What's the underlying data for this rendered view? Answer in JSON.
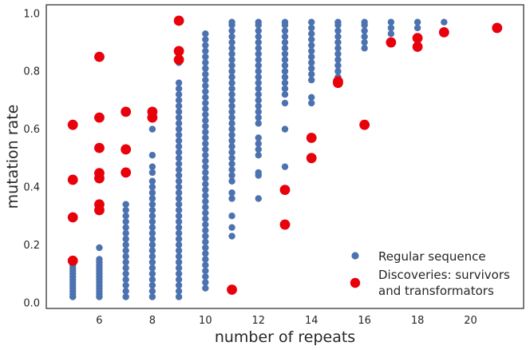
{
  "chart_data": {
    "type": "scatter",
    "title": "",
    "xlabel": "number of repeats",
    "ylabel": "mutation rate",
    "xlim": [
      4.0,
      22.0
    ],
    "ylim": [
      -0.02,
      1.03
    ],
    "xticks": [
      6,
      8,
      10,
      12,
      14,
      16,
      18,
      20
    ],
    "yticks": [
      0.0,
      0.2,
      0.4,
      0.6,
      0.8,
      1.0
    ],
    "grid": false,
    "legend_position": "bottom-right",
    "series": [
      {
        "name": "Regular sequence",
        "color": "#4c72b0",
        "marker": "small-circle",
        "columns": [
          {
            "x": 5,
            "ymin": 0.02,
            "ymax": 0.15,
            "points": [
              0.02,
              0.03,
              0.04,
              0.05,
              0.06,
              0.07,
              0.08,
              0.09,
              0.1,
              0.11,
              0.12,
              0.13,
              0.14,
              0.15
            ]
          },
          {
            "x": 6,
            "ymin": 0.02,
            "ymax": 0.19,
            "points": [
              0.02,
              0.03,
              0.04,
              0.05,
              0.06,
              0.07,
              0.08,
              0.09,
              0.1,
              0.11,
              0.12,
              0.13,
              0.14,
              0.15,
              0.19
            ]
          },
          {
            "x": 7,
            "ymin": 0.02,
            "ymax": 0.34,
            "points": [
              0.02,
              0.04,
              0.06,
              0.08,
              0.1,
              0.12,
              0.14,
              0.16,
              0.18,
              0.2,
              0.22,
              0.24,
              0.26,
              0.28,
              0.3,
              0.32,
              0.34
            ]
          },
          {
            "x": 8,
            "ymin": 0.02,
            "ymax": 0.6,
            "points": [
              0.02,
              0.04,
              0.06,
              0.08,
              0.1,
              0.12,
              0.14,
              0.16,
              0.18,
              0.2,
              0.22,
              0.24,
              0.26,
              0.28,
              0.3,
              0.32,
              0.34,
              0.36,
              0.38,
              0.4,
              0.42,
              0.45,
              0.47,
              0.51,
              0.6
            ]
          },
          {
            "x": 9,
            "ymin": 0.02,
            "ymax": 0.87,
            "points": [
              0.02,
              0.04,
              0.06,
              0.08,
              0.1,
              0.12,
              0.14,
              0.16,
              0.18,
              0.2,
              0.22,
              0.24,
              0.26,
              0.28,
              0.3,
              0.32,
              0.34,
              0.36,
              0.38,
              0.4,
              0.42,
              0.44,
              0.46,
              0.48,
              0.5,
              0.52,
              0.54,
              0.56,
              0.58,
              0.6,
              0.62,
              0.64,
              0.66,
              0.68,
              0.7,
              0.72,
              0.74,
              0.76,
              0.83,
              0.86,
              0.87
            ]
          },
          {
            "x": 10,
            "ymin": 0.05,
            "ymax": 0.93,
            "points": [
              0.05,
              0.07,
              0.09,
              0.11,
              0.13,
              0.15,
              0.17,
              0.19,
              0.21,
              0.23,
              0.25,
              0.27,
              0.29,
              0.31,
              0.33,
              0.35,
              0.37,
              0.39,
              0.41,
              0.43,
              0.45,
              0.47,
              0.49,
              0.51,
              0.53,
              0.55,
              0.57,
              0.59,
              0.61,
              0.63,
              0.65,
              0.67,
              0.69,
              0.71,
              0.73,
              0.75,
              0.77,
              0.79,
              0.81,
              0.83,
              0.85,
              0.87,
              0.89,
              0.91,
              0.93
            ]
          },
          {
            "x": 11,
            "ymin": 0.23,
            "ymax": 0.97,
            "points": [
              0.23,
              0.26,
              0.3,
              0.36,
              0.38,
              0.42,
              0.44,
              0.46,
              0.48,
              0.5,
              0.52,
              0.54,
              0.56,
              0.58,
              0.6,
              0.62,
              0.64,
              0.66,
              0.68,
              0.7,
              0.72,
              0.74,
              0.76,
              0.78,
              0.8,
              0.82,
              0.84,
              0.86,
              0.88,
              0.9,
              0.92,
              0.94,
              0.96,
              0.97
            ]
          },
          {
            "x": 12,
            "ymin": 0.36,
            "ymax": 0.97,
            "points": [
              0.36,
              0.44,
              0.45,
              0.51,
              0.53,
              0.55,
              0.57,
              0.62,
              0.64,
              0.66,
              0.68,
              0.7,
              0.72,
              0.74,
              0.76,
              0.78,
              0.8,
              0.82,
              0.84,
              0.86,
              0.88,
              0.9,
              0.92,
              0.94,
              0.96,
              0.97
            ]
          },
          {
            "x": 13,
            "ymin": 0.47,
            "ymax": 0.97,
            "points": [
              0.47,
              0.6,
              0.69,
              0.72,
              0.74,
              0.76,
              0.78,
              0.8,
              0.82,
              0.84,
              0.86,
              0.88,
              0.9,
              0.92,
              0.94,
              0.96,
              0.97
            ]
          },
          {
            "x": 14,
            "ymin": 0.69,
            "ymax": 0.97,
            "points": [
              0.69,
              0.71,
              0.77,
              0.79,
              0.81,
              0.83,
              0.85,
              0.87,
              0.89,
              0.91,
              0.93,
              0.95,
              0.97
            ]
          },
          {
            "x": 15,
            "ymin": 0.78,
            "ymax": 0.97,
            "points": [
              0.78,
              0.8,
              0.82,
              0.84,
              0.86,
              0.88,
              0.9,
              0.92,
              0.94,
              0.96,
              0.97
            ]
          },
          {
            "x": 16,
            "ymin": 0.88,
            "ymax": 0.97,
            "points": [
              0.88,
              0.9,
              0.92,
              0.94,
              0.96,
              0.97
            ]
          },
          {
            "x": 17,
            "ymin": 0.93,
            "ymax": 0.97,
            "points": [
              0.93,
              0.95,
              0.97
            ]
          },
          {
            "x": 18,
            "ymin": 0.95,
            "ymax": 0.97,
            "points": [
              0.95,
              0.97
            ]
          },
          {
            "x": 19,
            "ymin": 0.97,
            "ymax": 0.97,
            "points": [
              0.97
            ]
          }
        ]
      },
      {
        "name": "Discoveries: survivors and transformators",
        "legend_lines": [
          "Discoveries: survivors",
          "and transformators"
        ],
        "color": "#e8000b",
        "marker": "large-circle",
        "points": [
          {
            "x": 5,
            "y": 0.615
          },
          {
            "x": 5,
            "y": 0.425
          },
          {
            "x": 5,
            "y": 0.295
          },
          {
            "x": 5,
            "y": 0.145
          },
          {
            "x": 6,
            "y": 0.85
          },
          {
            "x": 6,
            "y": 0.64
          },
          {
            "x": 6,
            "y": 0.535
          },
          {
            "x": 6,
            "y": 0.448
          },
          {
            "x": 6,
            "y": 0.43
          },
          {
            "x": 6,
            "y": 0.34
          },
          {
            "x": 6,
            "y": 0.32
          },
          {
            "x": 7,
            "y": 0.66
          },
          {
            "x": 7,
            "y": 0.53
          },
          {
            "x": 7,
            "y": 0.45
          },
          {
            "x": 8,
            "y": 0.66
          },
          {
            "x": 8,
            "y": 0.64
          },
          {
            "x": 9,
            "y": 0.975
          },
          {
            "x": 9,
            "y": 0.87
          },
          {
            "x": 9,
            "y": 0.84
          },
          {
            "x": 11,
            "y": 0.045
          },
          {
            "x": 13,
            "y": 0.39
          },
          {
            "x": 13,
            "y": 0.27
          },
          {
            "x": 14,
            "y": 0.57
          },
          {
            "x": 14,
            "y": 0.5
          },
          {
            "x": 15,
            "y": 0.765
          },
          {
            "x": 15,
            "y": 0.76
          },
          {
            "x": 16,
            "y": 0.615
          },
          {
            "x": 17,
            "y": 0.9
          },
          {
            "x": 18,
            "y": 0.915
          },
          {
            "x": 18,
            "y": 0.885
          },
          {
            "x": 19,
            "y": 0.935
          },
          {
            "x": 21,
            "y": 0.95
          }
        ]
      }
    ]
  }
}
